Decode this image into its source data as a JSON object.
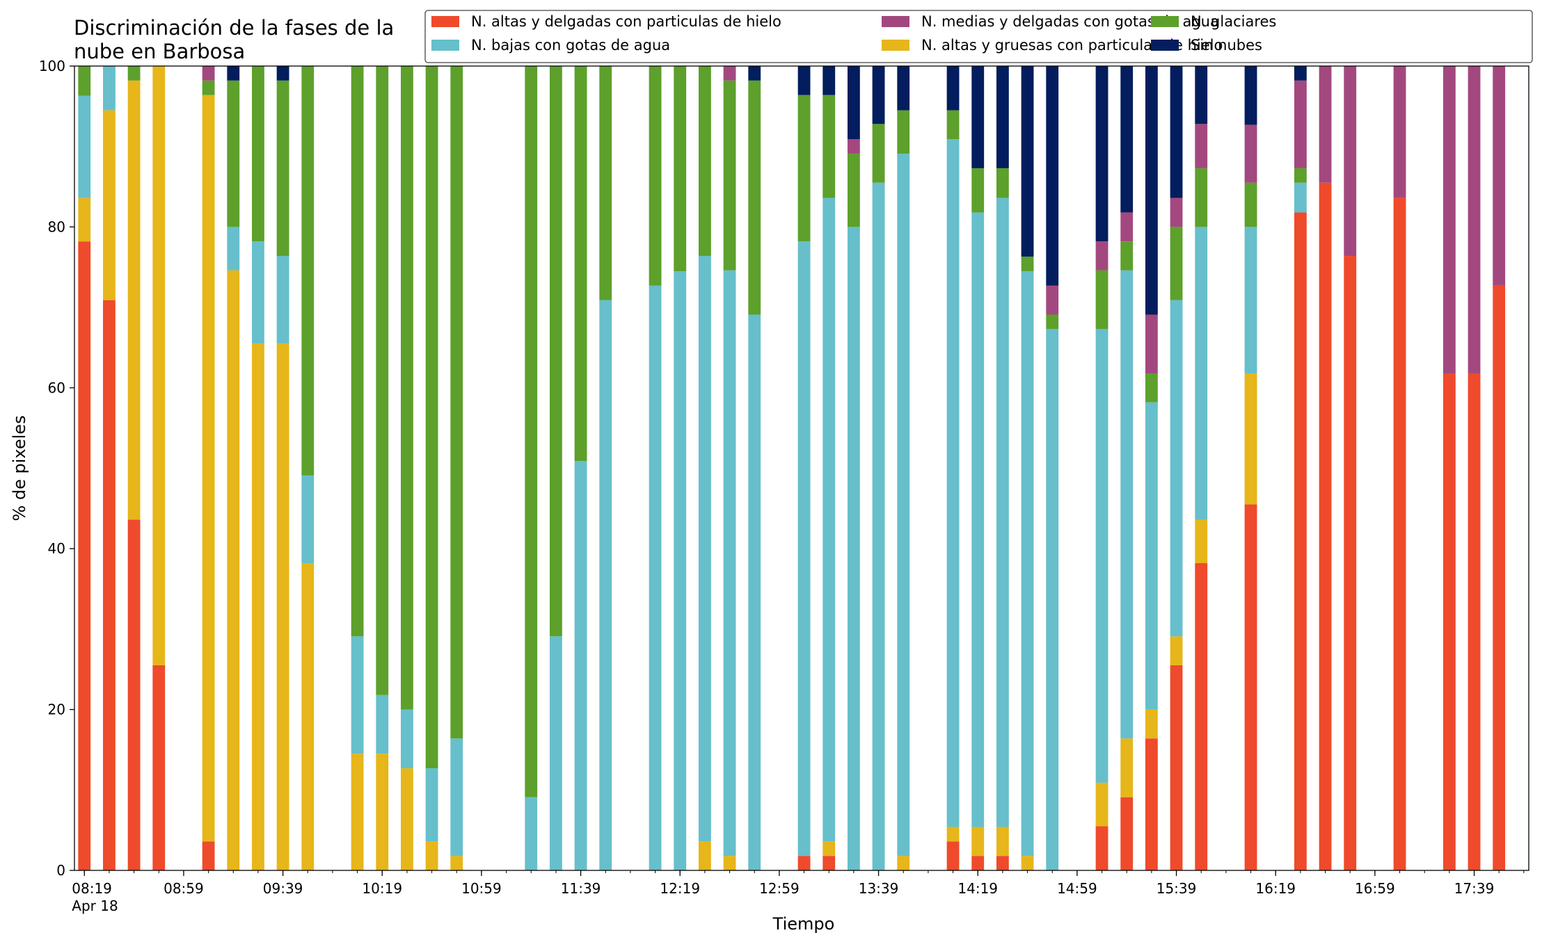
{
  "chart_data": {
    "type": "bar",
    "stacked": true,
    "title_lines": [
      "Discriminación de la fases de la",
      "nube en Barbosa"
    ],
    "xlabel": "Tiempo",
    "ylabel": "% de pixeles",
    "ylim": [
      0,
      100
    ],
    "yticks": [
      0,
      20,
      40,
      60,
      80,
      100
    ],
    "xlim_minutes": [
      "08:15",
      "18:01"
    ],
    "bar_width_minutes": 5,
    "xtick_labels": [
      "08:19",
      "08:59",
      "09:39",
      "10:19",
      "10:59",
      "11:39",
      "12:19",
      "12:59",
      "13:39",
      "14:19",
      "14:59",
      "15:39",
      "16:19",
      "16:59",
      "17:39"
    ],
    "xtick_date": "Apr 18",
    "grid": false,
    "legend_position": "top-right",
    "series": [
      {
        "name": "N. altas y delgadas con particulas de hielo",
        "color": "#ef4a2b"
      },
      {
        "name": "N. altas y gruesas con particulas de hielo",
        "color": "#e6b61a"
      },
      {
        "name": "N. bajas con gotas de agua",
        "color": "#66bfcb"
      },
      {
        "name": "N. glaciares",
        "color": "#5da02b"
      },
      {
        "name": "N. medias y delgadas con gotas de agua",
        "color": "#a3487f"
      },
      {
        "name": "Sin nubes",
        "color": "#031d5e"
      }
    ],
    "legend_order": [
      0,
      2,
      4,
      1,
      3,
      5
    ],
    "bars": [
      {
        "time": "08:19",
        "values": [
          78.2,
          5.4,
          12.7,
          3.7,
          0,
          0
        ]
      },
      {
        "time": "08:29",
        "values": [
          70.9,
          23.6,
          5.5,
          0,
          0,
          0
        ]
      },
      {
        "time": "08:39",
        "values": [
          43.6,
          54.6,
          0,
          1.8,
          0,
          0
        ]
      },
      {
        "time": "08:49",
        "values": [
          25.5,
          74.5,
          0,
          0,
          0,
          0
        ]
      },
      {
        "time": "09:09",
        "values": [
          3.6,
          92.8,
          0,
          1.8,
          1.8,
          0
        ]
      },
      {
        "time": "09:19",
        "values": [
          0,
          74.6,
          5.4,
          18.2,
          0,
          1.8
        ]
      },
      {
        "time": "09:29",
        "values": [
          0,
          65.5,
          12.7,
          21.8,
          0,
          0
        ]
      },
      {
        "time": "09:39",
        "values": [
          0,
          65.5,
          10.9,
          21.8,
          0,
          1.8
        ]
      },
      {
        "time": "09:49",
        "values": [
          0,
          38.2,
          10.9,
          50.9,
          0,
          0
        ]
      },
      {
        "time": "10:09",
        "values": [
          0,
          14.5,
          14.6,
          70.9,
          0,
          0
        ]
      },
      {
        "time": "10:19",
        "values": [
          0,
          14.5,
          7.3,
          78.2,
          0,
          0
        ]
      },
      {
        "time": "10:29",
        "values": [
          0,
          12.7,
          7.3,
          80.0,
          0,
          0
        ]
      },
      {
        "time": "10:39",
        "values": [
          0,
          3.6,
          9.1,
          87.3,
          0,
          0
        ]
      },
      {
        "time": "10:49",
        "values": [
          0,
          1.8,
          14.6,
          83.6,
          0,
          0
        ]
      },
      {
        "time": "11:19",
        "values": [
          0,
          0,
          9.1,
          90.9,
          0,
          0
        ]
      },
      {
        "time": "11:29",
        "values": [
          0,
          0,
          29.1,
          70.9,
          0,
          0
        ]
      },
      {
        "time": "11:39",
        "values": [
          0,
          0,
          50.9,
          49.1,
          0,
          0
        ]
      },
      {
        "time": "11:49",
        "values": [
          0,
          0,
          70.9,
          29.1,
          0,
          0
        ]
      },
      {
        "time": "12:09",
        "values": [
          0,
          0,
          72.7,
          27.3,
          0,
          0
        ]
      },
      {
        "time": "12:19",
        "values": [
          0,
          0,
          74.5,
          25.5,
          0,
          0
        ]
      },
      {
        "time": "12:29",
        "values": [
          0,
          3.6,
          72.8,
          23.6,
          0,
          0
        ]
      },
      {
        "time": "12:39",
        "values": [
          0,
          1.8,
          72.8,
          23.6,
          1.8,
          0
        ]
      },
      {
        "time": "12:49",
        "values": [
          0,
          0,
          69.1,
          29.1,
          0,
          1.8
        ]
      },
      {
        "time": "13:09",
        "values": [
          1.8,
          0,
          76.4,
          18.2,
          0,
          3.6
        ]
      },
      {
        "time": "13:19",
        "values": [
          1.8,
          1.8,
          80.0,
          12.8,
          0,
          3.6
        ]
      },
      {
        "time": "13:29",
        "values": [
          0,
          0,
          80.0,
          9.1,
          1.8,
          9.1
        ]
      },
      {
        "time": "13:39",
        "values": [
          0,
          0,
          85.5,
          7.3,
          0,
          7.2
        ]
      },
      {
        "time": "13:49",
        "values": [
          0,
          1.8,
          87.3,
          5.4,
          0,
          5.5
        ]
      },
      {
        "time": "14:09",
        "values": [
          3.6,
          1.8,
          85.5,
          3.6,
          0,
          5.5
        ]
      },
      {
        "time": "14:19",
        "values": [
          1.8,
          3.6,
          76.4,
          5.5,
          0,
          12.7
        ]
      },
      {
        "time": "14:29",
        "values": [
          1.8,
          3.6,
          78.2,
          3.7,
          0,
          12.7
        ]
      },
      {
        "time": "14:39",
        "values": [
          0,
          1.8,
          72.7,
          1.8,
          0,
          23.7
        ]
      },
      {
        "time": "14:49",
        "values": [
          0,
          0,
          67.3,
          1.8,
          3.6,
          27.3
        ]
      },
      {
        "time": "15:09",
        "values": [
          5.5,
          5.4,
          56.4,
          7.3,
          3.6,
          21.8
        ]
      },
      {
        "time": "15:19",
        "values": [
          9.1,
          7.3,
          58.2,
          3.6,
          3.6,
          18.2
        ]
      },
      {
        "time": "15:29",
        "values": [
          16.4,
          3.6,
          38.2,
          3.6,
          7.3,
          30.9
        ]
      },
      {
        "time": "15:39",
        "values": [
          25.5,
          3.6,
          41.8,
          9.1,
          3.6,
          16.4
        ]
      },
      {
        "time": "15:49",
        "values": [
          38.2,
          5.4,
          36.4,
          7.3,
          5.5,
          7.2
        ]
      },
      {
        "time": "16:09",
        "values": [
          45.5,
          16.3,
          18.2,
          5.5,
          7.2,
          7.3
        ]
      },
      {
        "time": "16:29",
        "values": [
          81.8,
          0,
          3.7,
          1.8,
          10.9,
          1.8
        ]
      },
      {
        "time": "16:39",
        "values": [
          85.5,
          0,
          0,
          0,
          14.5,
          0
        ]
      },
      {
        "time": "16:49",
        "values": [
          76.4,
          0,
          0,
          0,
          23.6,
          0
        ]
      },
      {
        "time": "17:09",
        "values": [
          83.6,
          0,
          0,
          0,
          16.4,
          0
        ]
      },
      {
        "time": "17:29",
        "values": [
          61.8,
          0,
          0,
          0,
          38.2,
          0
        ]
      },
      {
        "time": "17:39",
        "values": [
          61.8,
          0,
          0,
          0,
          38.2,
          0
        ]
      },
      {
        "time": "17:49",
        "values": [
          72.7,
          0,
          0,
          0,
          27.3,
          0
        ]
      }
    ]
  }
}
